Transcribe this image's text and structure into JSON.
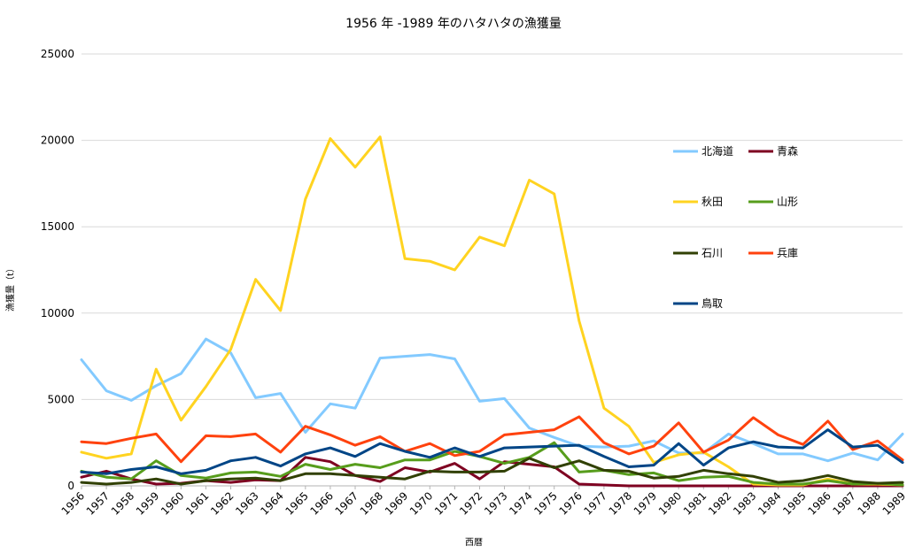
{
  "chart_data": {
    "type": "line",
    "title": "1956 年 -1989 年のハタハタの漁獲量",
    "xlabel": "西暦",
    "ylabel": "漁獲量（t）",
    "ylim": [
      0,
      25000
    ],
    "yticks": [
      "0",
      "5000",
      "10000",
      "15000",
      "20000",
      "25000"
    ],
    "grid": true,
    "legend_position": "right",
    "categories": [
      "1956",
      "1957",
      "1958",
      "1959",
      "1960",
      "1961",
      "1962",
      "1963",
      "1964",
      "1965",
      "1966",
      "1967",
      "1968",
      "1969",
      "1970",
      "1971",
      "1972",
      "1973",
      "1974",
      "1975",
      "1976",
      "1977",
      "1978",
      "1979",
      "1980",
      "1981",
      "1982",
      "1983",
      "1984",
      "1985",
      "1986",
      "1987",
      "1988",
      "1989"
    ],
    "series": [
      {
        "name": "北海道",
        "color": "#83caff",
        "values": [
          7300,
          5500,
          4950,
          5800,
          6500,
          8500,
          7700,
          5100,
          5350,
          3100,
          4750,
          4500,
          7400,
          7500,
          7600,
          7350,
          4900,
          5050,
          3350,
          2800,
          2300,
          2250,
          2300,
          2600,
          1900,
          1900,
          3000,
          2450,
          1850,
          1850,
          1450,
          1900,
          1500,
          3000
        ]
      },
      {
        "name": "青森",
        "color": "#7e0021",
        "values": [
          500,
          850,
          400,
          100,
          150,
          300,
          200,
          350,
          300,
          1650,
          1400,
          600,
          250,
          1050,
          800,
          1300,
          400,
          1400,
          1250,
          1100,
          100,
          50,
          0,
          0,
          0,
          0,
          0,
          0,
          0,
          0,
          0,
          0,
          0,
          0
        ]
      },
      {
        "name": "秋田",
        "color": "#ffd320",
        "values": [
          1950,
          1600,
          1850,
          6750,
          3800,
          5750,
          7900,
          11950,
          10150,
          16600,
          20100,
          18450,
          20200,
          13150,
          13000,
          12500,
          14400,
          13900,
          17700,
          16900,
          9550,
          4500,
          3450,
          1350,
          1800,
          1950,
          1100,
          100,
          50,
          50,
          400,
          100,
          100,
          50
        ]
      },
      {
        "name": "山形",
        "color": "#579d1c",
        "values": [
          850,
          500,
          400,
          1450,
          600,
          450,
          750,
          800,
          550,
          1250,
          950,
          1250,
          1050,
          1500,
          1500,
          2000,
          1700,
          1300,
          1650,
          2500,
          800,
          900,
          650,
          750,
          300,
          500,
          550,
          200,
          100,
          100,
          300,
          100,
          150,
          50
        ]
      },
      {
        "name": "石川",
        "color": "#314004",
        "values": [
          200,
          100,
          200,
          400,
          100,
          300,
          400,
          450,
          300,
          700,
          700,
          600,
          500,
          400,
          850,
          800,
          800,
          850,
          1600,
          1050,
          1450,
          900,
          850,
          450,
          550,
          900,
          700,
          550,
          200,
          300,
          600,
          250,
          150,
          200
        ]
      },
      {
        "name": "兵庫",
        "color": "#ff420e",
        "values": [
          2550,
          2450,
          2750,
          3000,
          1400,
          2900,
          2850,
          3000,
          1950,
          3450,
          2950,
          2350,
          2850,
          2000,
          2450,
          1750,
          2000,
          2950,
          3100,
          3250,
          4000,
          2500,
          1850,
          2300,
          3650,
          1950,
          2650,
          3950,
          2950,
          2400,
          3750,
          2100,
          2600,
          1500
        ]
      },
      {
        "name": "鳥取",
        "color": "#004586",
        "values": [
          800,
          700,
          950,
          1100,
          700,
          900,
          1450,
          1650,
          1150,
          1850,
          2200,
          1700,
          2450,
          2000,
          1650,
          2200,
          1700,
          2200,
          2250,
          2300,
          2350,
          1700,
          1100,
          1200,
          2450,
          1200,
          2200,
          2550,
          2250,
          2200,
          3250,
          2250,
          2350,
          1350
        ]
      }
    ]
  }
}
